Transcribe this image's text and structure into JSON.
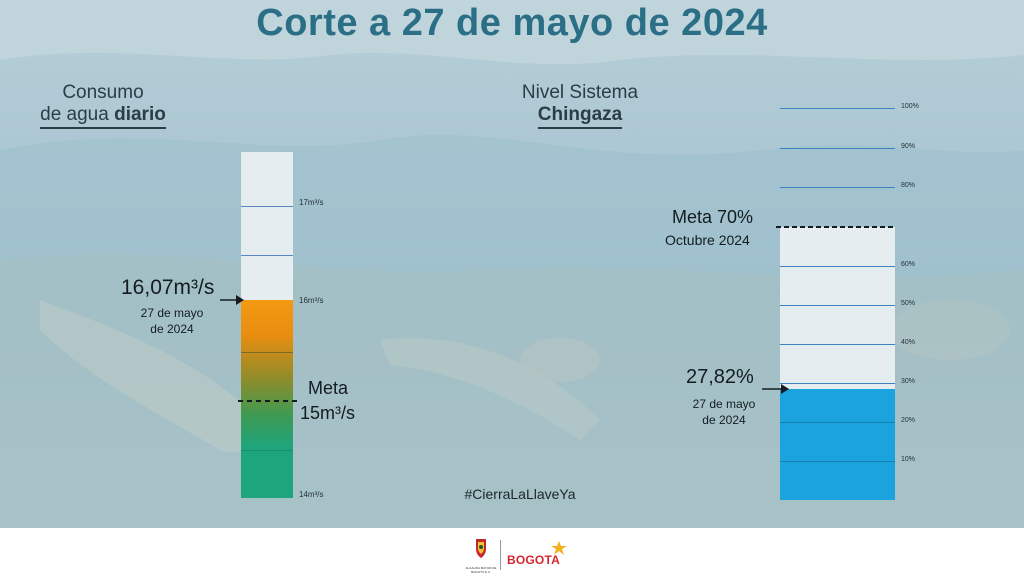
{
  "title": "Corte a 27 de mayo de 2024",
  "left_panel": {
    "heading_line1": "Consumo",
    "heading_line2_prefix": "de agua ",
    "heading_line2_bold": "diario",
    "tick_labels": [
      "17m³/s",
      "16m³/s",
      "14m³/s"
    ],
    "current_value": "16,07m³/s",
    "current_date_line1": "27 de mayo",
    "current_date_line2": "de 2024",
    "meta_label": "Meta",
    "meta_value": "15m³/s",
    "scale_min": 14,
    "scale_max": 17.5,
    "current_numeric": 16.07,
    "meta_numeric": 15
  },
  "right_panel": {
    "heading_line1": "Nivel Sistema",
    "heading_line2": "Chingaza",
    "tick_labels": [
      "100%",
      "90%",
      "80%",
      "60%",
      "50%",
      "40%",
      "30%",
      "20%",
      "10%"
    ],
    "meta_label": "Meta 70%",
    "meta_sublabel": "Octubre 2024",
    "current_value": "27,82%",
    "current_date_line1": "27 de mayo",
    "current_date_line2": "de 2024",
    "current_percent": 27.82,
    "meta_percent": 70
  },
  "hashtag": "#CierraLaLlaveYa",
  "footer": {
    "logo_right": "BOGOTA",
    "logo_left_caption": "ALCALDÍA MAYOR DE BOGOTÁ D.C."
  },
  "colors": {
    "title": "#2b6f86",
    "column_empty": "#e6edf1",
    "orange": "#f39a12",
    "green": "#1fa37f",
    "blue_fill": "#1aa3dd",
    "tick": "#3f82c0"
  }
}
